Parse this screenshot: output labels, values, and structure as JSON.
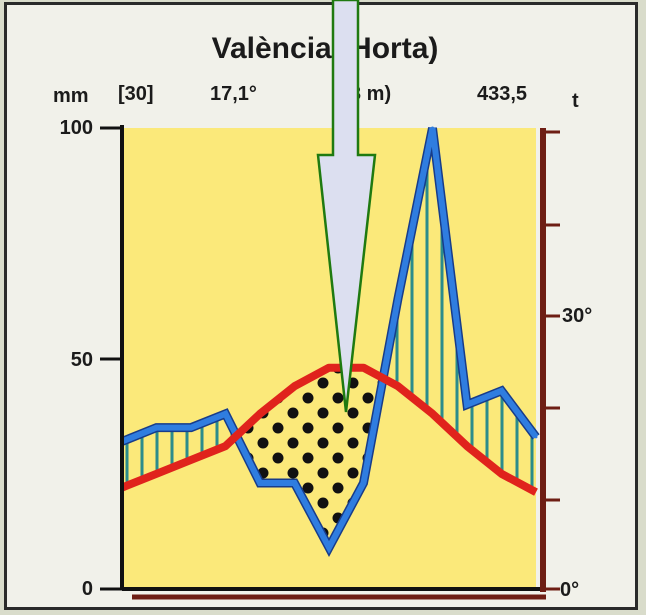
{
  "chart_data": {
    "type": "line",
    "title": "València (Horta)",
    "header": {
      "unit_left": "mm",
      "years": "[30]",
      "mean_temp": "17,1°",
      "altitude": "3 m)",
      "annual_precip": "433,5",
      "unit_right": "t"
    },
    "y_left": {
      "ticks": [
        "100",
        "50",
        "0"
      ],
      "range": [
        0,
        100
      ]
    },
    "y_right": {
      "ticks": [
        "30°",
        "0°"
      ],
      "range": [
        0,
        50
      ]
    },
    "months": 12,
    "series": [
      {
        "values": [
          32,
          35,
          35,
          38,
          23,
          23,
          9,
          23,
          63,
          100,
          40,
          43,
          33
        ]
      },
      {
        "values": [
          22,
          25,
          28,
          31,
          38,
          44,
          48,
          48,
          44,
          38,
          31,
          25,
          21
        ]
      }
    ],
    "colors": {
      "background": "#fbe97a",
      "precipitation": "#2f7de0",
      "temperature": "#e0231c",
      "humid_hatch": "#2a8c8c",
      "dry_dots": "#111111",
      "right_axis": "#6e1e14",
      "arrow_fill": "#dcdff0",
      "arrow_stroke": "#1f7a10"
    }
  }
}
